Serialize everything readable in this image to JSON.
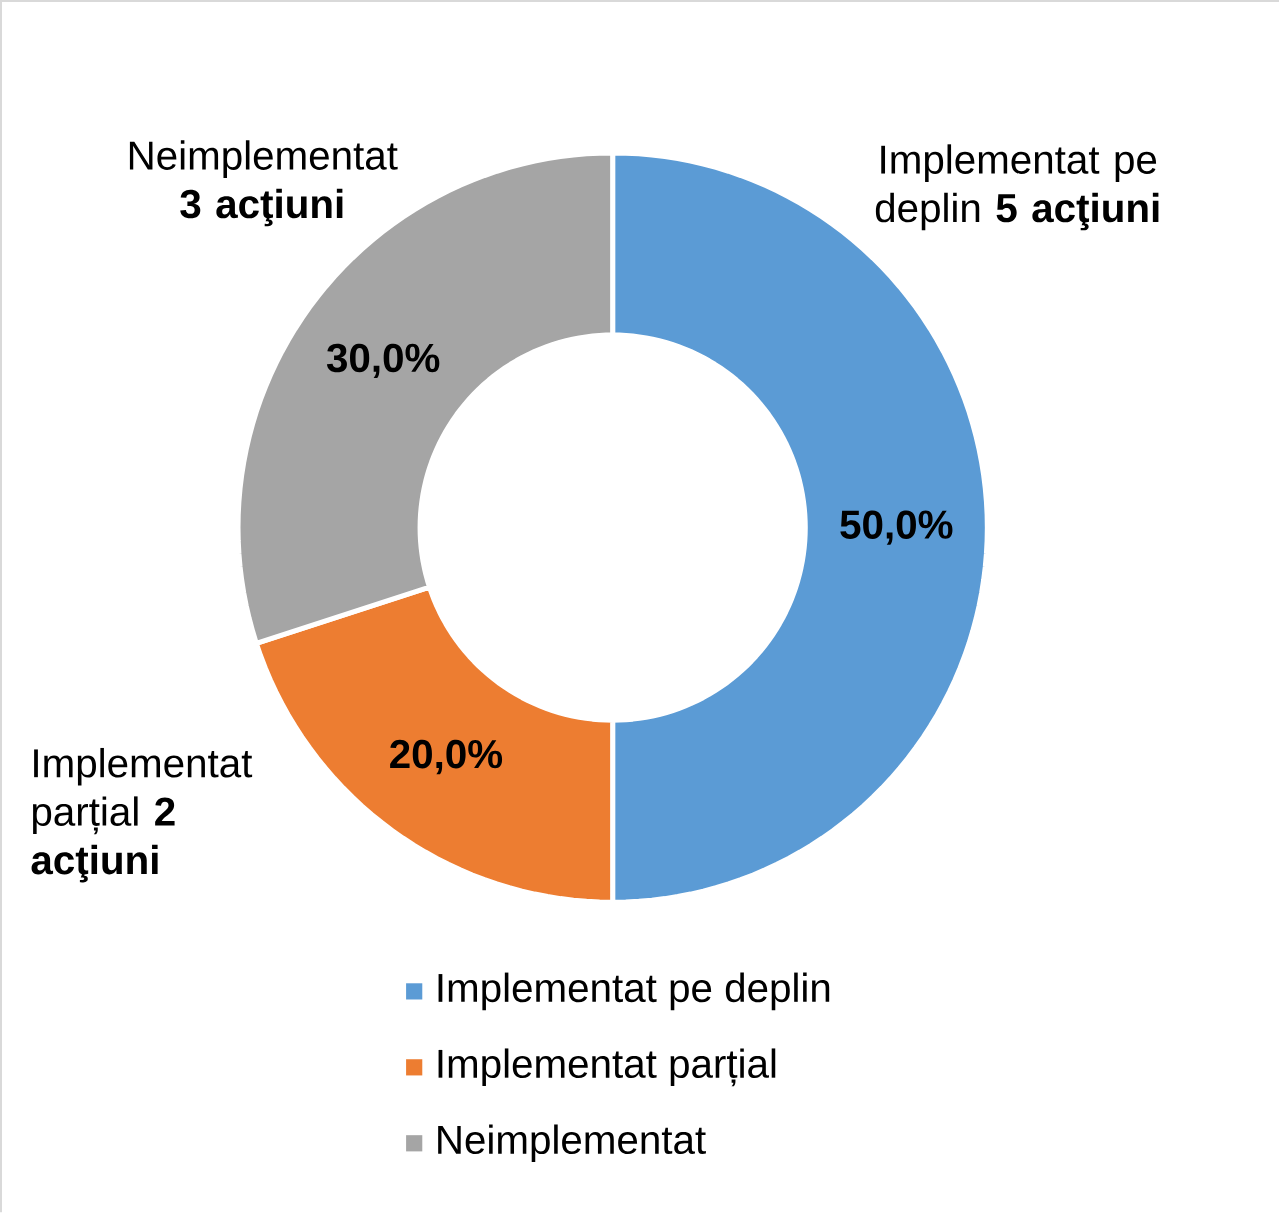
{
  "chart_data": {
    "type": "donut",
    "categories": [
      "Implementat pe deplin",
      "Implementat parțial",
      "Neimplementat"
    ],
    "values": [
      50,
      20,
      30
    ],
    "colors": [
      "#5b9bd5",
      "#ed7d31",
      "#a5a5a5"
    ],
    "value_labels": [
      "50,0%",
      "20,0%",
      "30,0%"
    ],
    "annotations": [
      "Implementat pe deplin **5 acţiuni**",
      "Implementat parțial **2 acţiuni**",
      "Neimplementat **3 acţiuni**"
    ],
    "legend": "bottom"
  }
}
